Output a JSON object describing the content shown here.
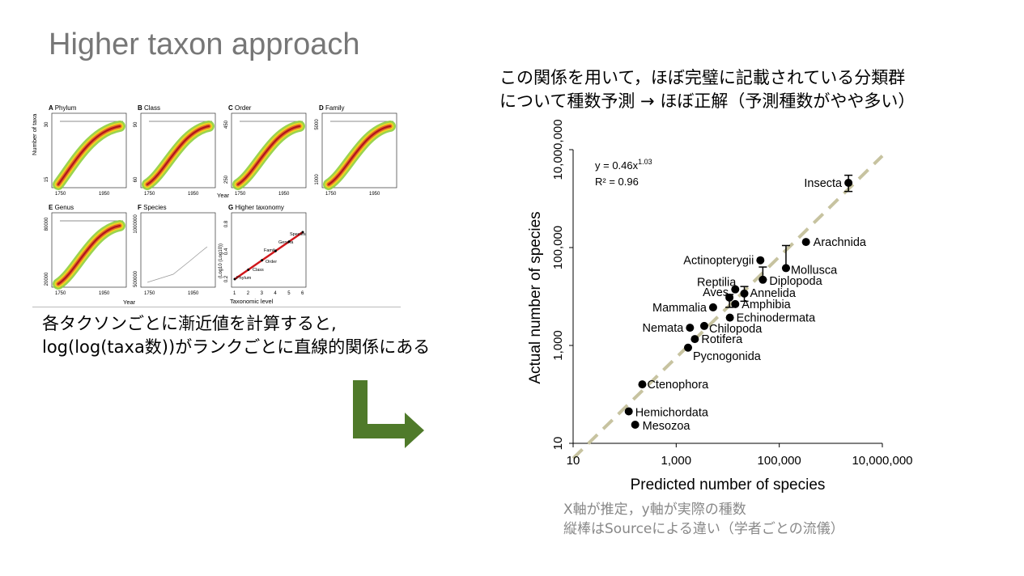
{
  "title": "Higher taxon approach",
  "caption_right": [
    "この関係を用いて，ほぼ完璧に記載されている分類群",
    "について種数予測 → ほぼ正解（予測種数がやや多い）"
  ],
  "caption_left": [
    "各タクソンごとに漸近値を計算すると,",
    "log(log(taxa数))がランクごとに直線的関係にある"
  ],
  "note": [
    "X軸が推定，y軸が実際の種数",
    "縦棒はSourceによる違い（学者ごとの流儀）"
  ],
  "left_figure": {
    "panels": [
      {
        "letter": "A",
        "name": "Phylum",
        "y_ticks": [
          "30",
          "15"
        ]
      },
      {
        "letter": "B",
        "name": "Class",
        "y_ticks": [
          "90",
          "60"
        ]
      },
      {
        "letter": "C",
        "name": "Order",
        "y_ticks": [
          "450",
          "250"
        ]
      },
      {
        "letter": "D",
        "name": "Family",
        "y_ticks": [
          "5000",
          "1000"
        ]
      },
      {
        "letter": "E",
        "name": "Genus",
        "y_ticks": [
          "80000",
          "20000"
        ]
      },
      {
        "letter": "F",
        "name": "Species",
        "y_ticks": [
          "1000000",
          "500000"
        ]
      },
      {
        "letter": "G",
        "name": "Higher taxonomy",
        "y_ticks": [
          "0.8",
          "0.4",
          "0.2"
        ]
      }
    ],
    "x_ticks": [
      "1750",
      "1950"
    ],
    "y_axis_label": "Number of taxa",
    "x_axis_label": "Year",
    "g_ylabel": "(Log10 (Log10))",
    "g_xlabel": "Taxonomic level",
    "g_xticks": [
      "1",
      "2",
      "3",
      "4",
      "5",
      "6"
    ],
    "g_points": [
      "Phylum",
      "Class",
      "Order",
      "Family",
      "Genera",
      "Species"
    ]
  },
  "chart_data": {
    "type": "scatter",
    "title": "",
    "xlabel": "Predicted number of species",
    "ylabel": "Actual number of species",
    "x_scale": "log",
    "y_scale": "log",
    "xlim": [
      10,
      10000000
    ],
    "ylim": [
      10,
      10000000
    ],
    "x_ticks": [
      "10",
      "1,000",
      "100,000",
      "10,000,000"
    ],
    "y_ticks": [
      "10",
      "1,000",
      "100,000",
      "10,000,000"
    ],
    "equation": "y = 0.46x",
    "equation_exp": "1.03",
    "r2": "R² = 0.96",
    "fit": {
      "a": 0.46,
      "b": 1.03
    },
    "points": [
      {
        "name": "Insecta",
        "x": 2200000,
        "y": 2100000,
        "ylo": 1400000,
        "yhi": 3000000
      },
      {
        "name": "Arachnida",
        "x": 330000,
        "y": 130000
      },
      {
        "name": "Actinopterygii",
        "x": 43000,
        "y": 55000
      },
      {
        "name": "Mollusca",
        "x": 135000,
        "y": 38000,
        "ylo": 38000,
        "yhi": 110000
      },
      {
        "name": "Diplopoda",
        "x": 48000,
        "y": 22000,
        "ylo": 22000,
        "yhi": 40000
      },
      {
        "name": "Reptilia",
        "x": 14000,
        "y": 14000
      },
      {
        "name": "Aves",
        "x": 10800,
        "y": 9500,
        "ylo": 6000,
        "yhi": 11000
      },
      {
        "name": "Annelida",
        "x": 21000,
        "y": 11500,
        "ylo": 8000,
        "yhi": 16000
      },
      {
        "name": "Mammalia",
        "x": 5200,
        "y": 6000
      },
      {
        "name": "Amphibia",
        "x": 14000,
        "y": 7000
      },
      {
        "name": "Echinodermata",
        "x": 11000,
        "y": 3700
      },
      {
        "name": "Nemata",
        "x": 1850,
        "y": 2300
      },
      {
        "name": "Chilopoda",
        "x": 3500,
        "y": 2500
      },
      {
        "name": "Rotifera",
        "x": 2300,
        "y": 1350
      },
      {
        "name": "Pycnogonida",
        "x": 1700,
        "y": 900
      },
      {
        "name": "Ctenophora",
        "x": 220,
        "y": 160
      },
      {
        "name": "Hemichordata",
        "x": 120,
        "y": 45
      },
      {
        "name": "Mesozoa",
        "x": 160,
        "y": 24
      }
    ],
    "colors": {
      "points": "#000000",
      "fit_line": "#c7c3a0"
    }
  },
  "colors": {
    "title": "#777777",
    "note": "#888888",
    "arrow": "#4f7a2a",
    "fit": "#c7c3a0",
    "red": "#d0171b"
  }
}
